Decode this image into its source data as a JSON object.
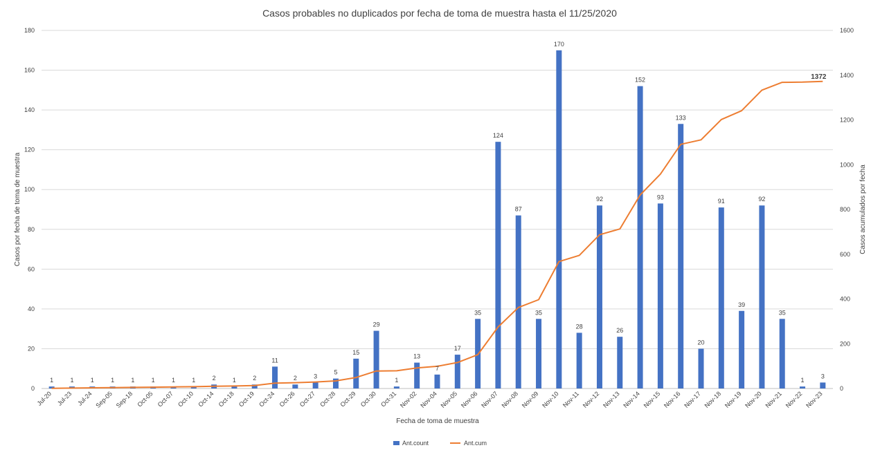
{
  "chart_data": {
    "type": "bar",
    "title": "Casos probables no duplicados por fecha de toma de muestra hasta el 11/25/2020",
    "xlabel": "Fecha de toma de muestra",
    "ylabel": "Casos por fecha de toma de muestra",
    "y2label": "Casos acumulados por fecha",
    "ylim": [
      0,
      180
    ],
    "y_ticks": [
      0,
      20,
      40,
      60,
      80,
      100,
      120,
      140,
      160,
      180
    ],
    "y2lim": [
      0,
      1600
    ],
    "y2_ticks": [
      0,
      200,
      400,
      600,
      800,
      1000,
      1200,
      1400,
      1600
    ],
    "grid": true,
    "legend_position": "bottom",
    "categories": [
      "Jul-20",
      "Jul-23",
      "Jul-24",
      "Sep-05",
      "Sep-18",
      "Oct-05",
      "Oct-07",
      "Oct-10",
      "Oct-14",
      "Oct-18",
      "Oct-19",
      "Oct-24",
      "Oct-26",
      "Oct-27",
      "Oct-28",
      "Oct-29",
      "Oct-30",
      "Oct-31",
      "Nov-02",
      "Nov-04",
      "Nov-05",
      "Nov-06",
      "Nov-07",
      "Nov-08",
      "Nov-09",
      "Nov-10",
      "Nov-11",
      "Nov-12",
      "Nov-13",
      "Nov-14",
      "Nov-15",
      "Nov-16",
      "Nov-17",
      "Nov-18",
      "Nov-19",
      "Nov-20",
      "Nov-21",
      "Nov-22",
      "Nov-23"
    ],
    "series": [
      {
        "name": "Ant.count",
        "type": "bar",
        "axis": "left",
        "color": "#4472c4",
        "values": [
          1,
          1,
          1,
          1,
          1,
          1,
          1,
          1,
          2,
          1,
          2,
          11,
          2,
          3,
          5,
          15,
          29,
          1,
          13,
          7,
          17,
          35,
          124,
          87,
          35,
          170,
          28,
          92,
          26,
          152,
          93,
          133,
          20,
          91,
          39,
          92,
          35,
          1,
          3
        ],
        "labels": [
          "1",
          "1",
          "1",
          "1",
          "1",
          "1",
          "1",
          "1",
          "2",
          "1",
          "2",
          "11",
          "2",
          "3",
          "5",
          "15",
          "29",
          "1",
          "13",
          "7",
          "17",
          "35",
          "124",
          "87",
          "35",
          "170",
          "28",
          "92",
          "26",
          "152",
          "93",
          "133",
          "20",
          "91",
          "39",
          "92",
          "35",
          "1",
          "3"
        ]
      },
      {
        "name": "Ant.cum",
        "type": "line",
        "axis": "right",
        "color": "#ed7d31",
        "values": [
          1,
          2,
          3,
          4,
          5,
          6,
          7,
          8,
          10,
          11,
          13,
          24,
          26,
          29,
          34,
          49,
          78,
          79,
          92,
          99,
          116,
          151,
          275,
          362,
          397,
          567,
          595,
          687,
          713,
          865,
          958,
          1091,
          1111,
          1202,
          1241,
          1333,
          1368,
          1369,
          1372
        ],
        "end_label": "1372"
      }
    ]
  }
}
